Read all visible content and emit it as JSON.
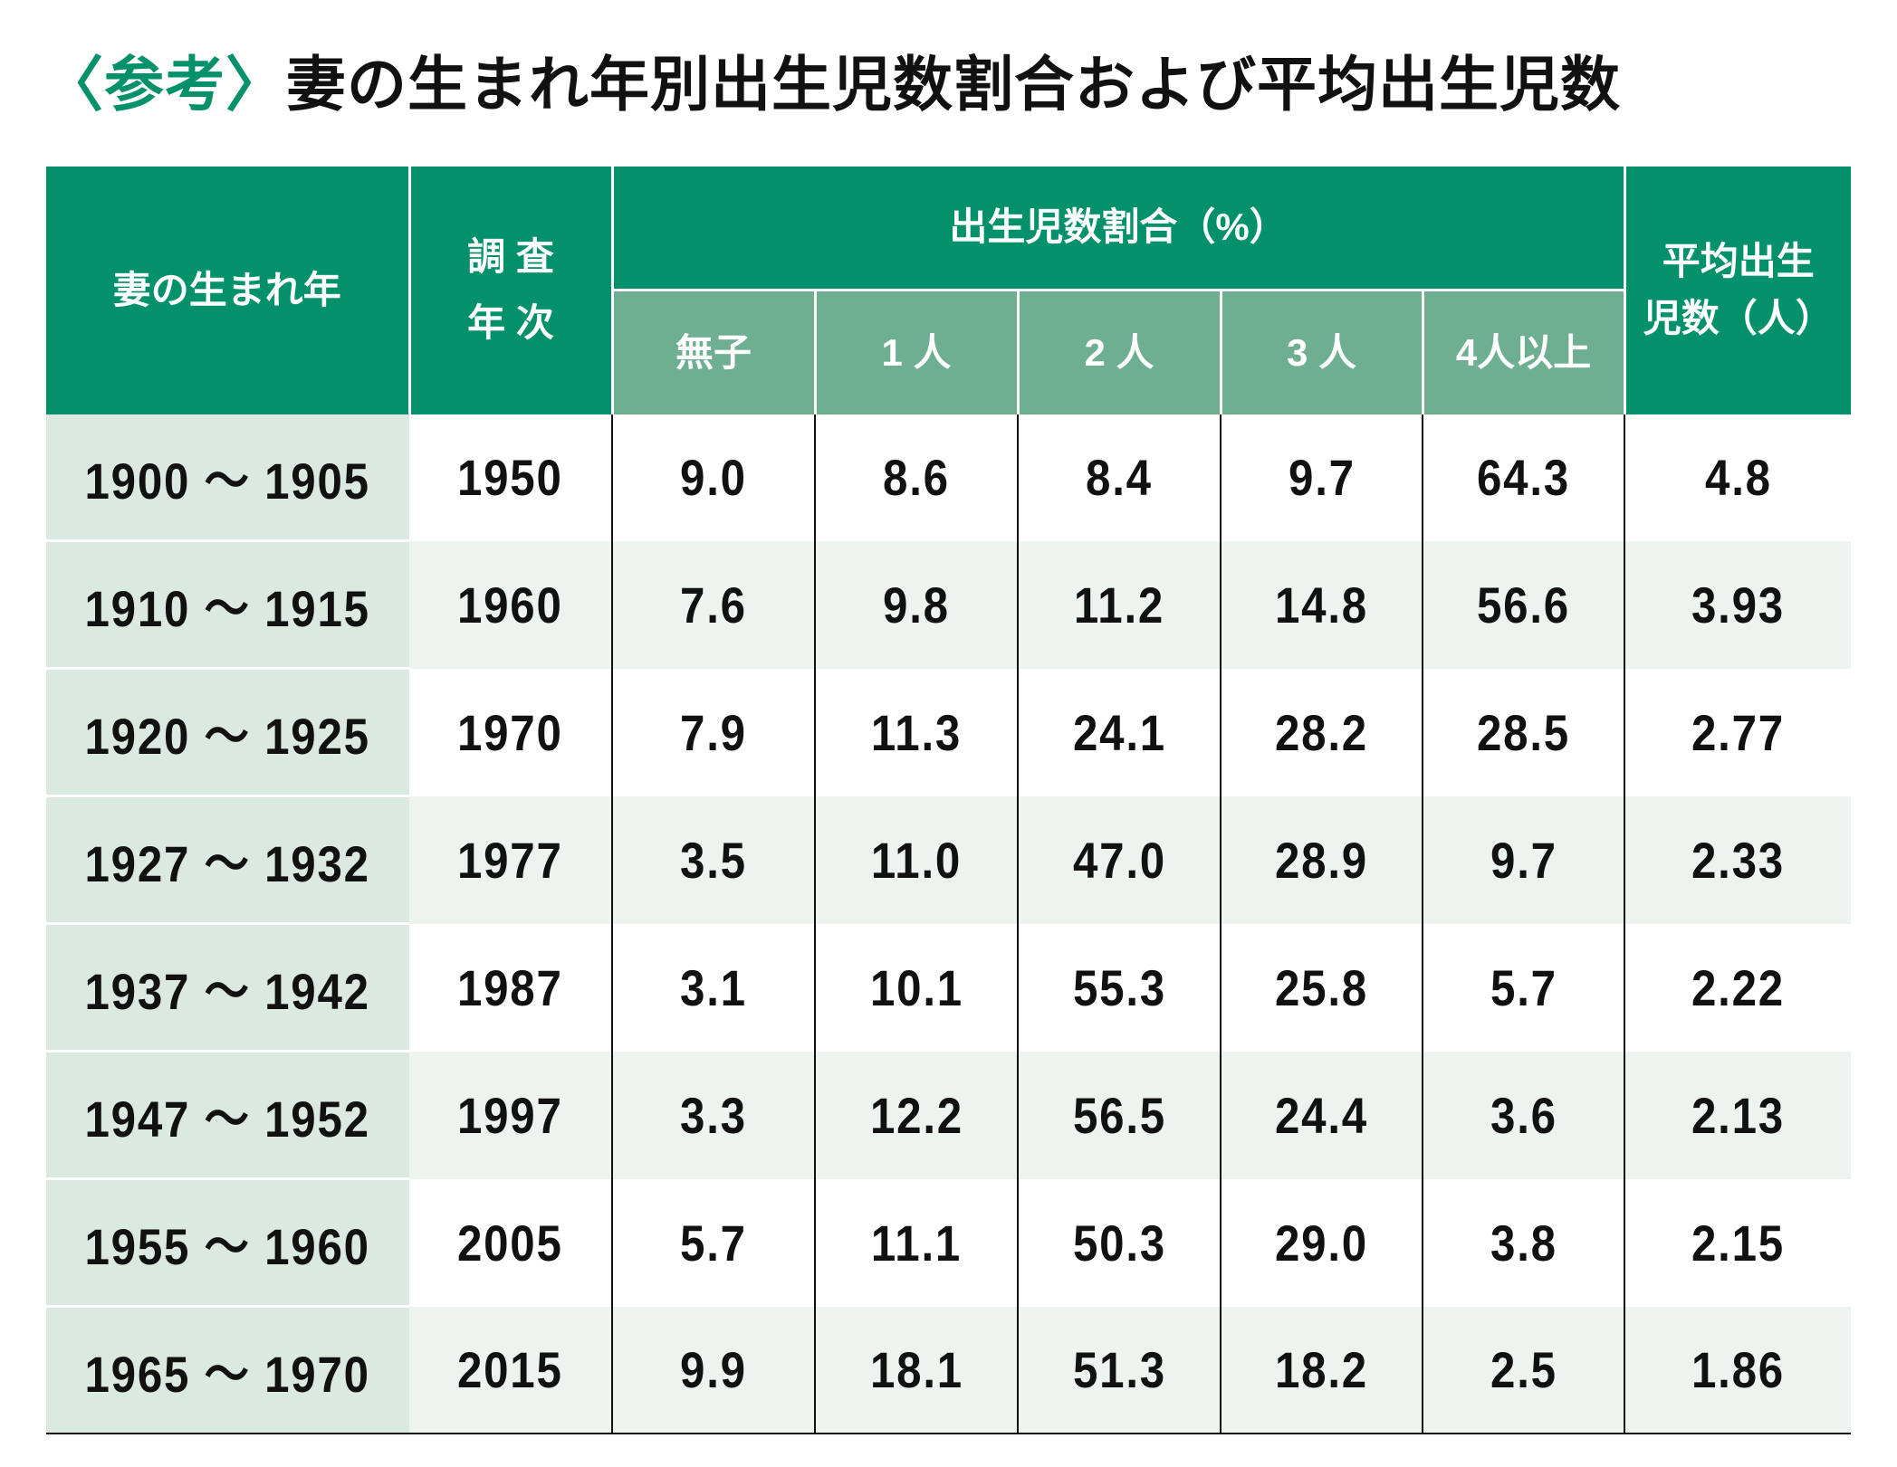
{
  "title": {
    "tag": "〈参考〉",
    "text": "妻の生まれ年別出生児数割合および平均出生児数"
  },
  "colors": {
    "header": "#02916a",
    "subheader": "#6faf91",
    "first_col": "#dce9e1",
    "alt_row": "#edf3ef"
  },
  "headers": {
    "birth_year": "妻の生まれ年",
    "survey_year_1": "調 査",
    "survey_year_2": "年 次",
    "ratio_group": "出生児数割合（%）",
    "sub": [
      "無子",
      "1 人",
      "2 人",
      "3 人",
      "4人以上"
    ],
    "avg_1": "平均出生",
    "avg_2": "児数（人）"
  },
  "rows": [
    [
      "1900 ～ 1905",
      "1950",
      "9.0",
      "8.6",
      "8.4",
      "9.7",
      "64.3",
      "4.8"
    ],
    [
      "1910 ～ 1915",
      "1960",
      "7.6",
      "9.8",
      "11.2",
      "14.8",
      "56.6",
      "3.93"
    ],
    [
      "1920 ～ 1925",
      "1970",
      "7.9",
      "11.3",
      "24.1",
      "28.2",
      "28.5",
      "2.77"
    ],
    [
      "1927 ～ 1932",
      "1977",
      "3.5",
      "11.0",
      "47.0",
      "28.9",
      "9.7",
      "2.33"
    ],
    [
      "1937 ～ 1942",
      "1987",
      "3.1",
      "10.1",
      "55.3",
      "25.8",
      "5.7",
      "2.22"
    ],
    [
      "1947 ～ 1952",
      "1997",
      "3.3",
      "12.2",
      "56.5",
      "24.4",
      "3.6",
      "2.13"
    ],
    [
      "1955 ～ 1960",
      "2005",
      "5.7",
      "11.1",
      "50.3",
      "29.0",
      "3.8",
      "2.15"
    ],
    [
      "1965 ～ 1970",
      "2015",
      "9.9",
      "18.1",
      "51.3",
      "18.2",
      "2.5",
      "1.86"
    ]
  ]
}
